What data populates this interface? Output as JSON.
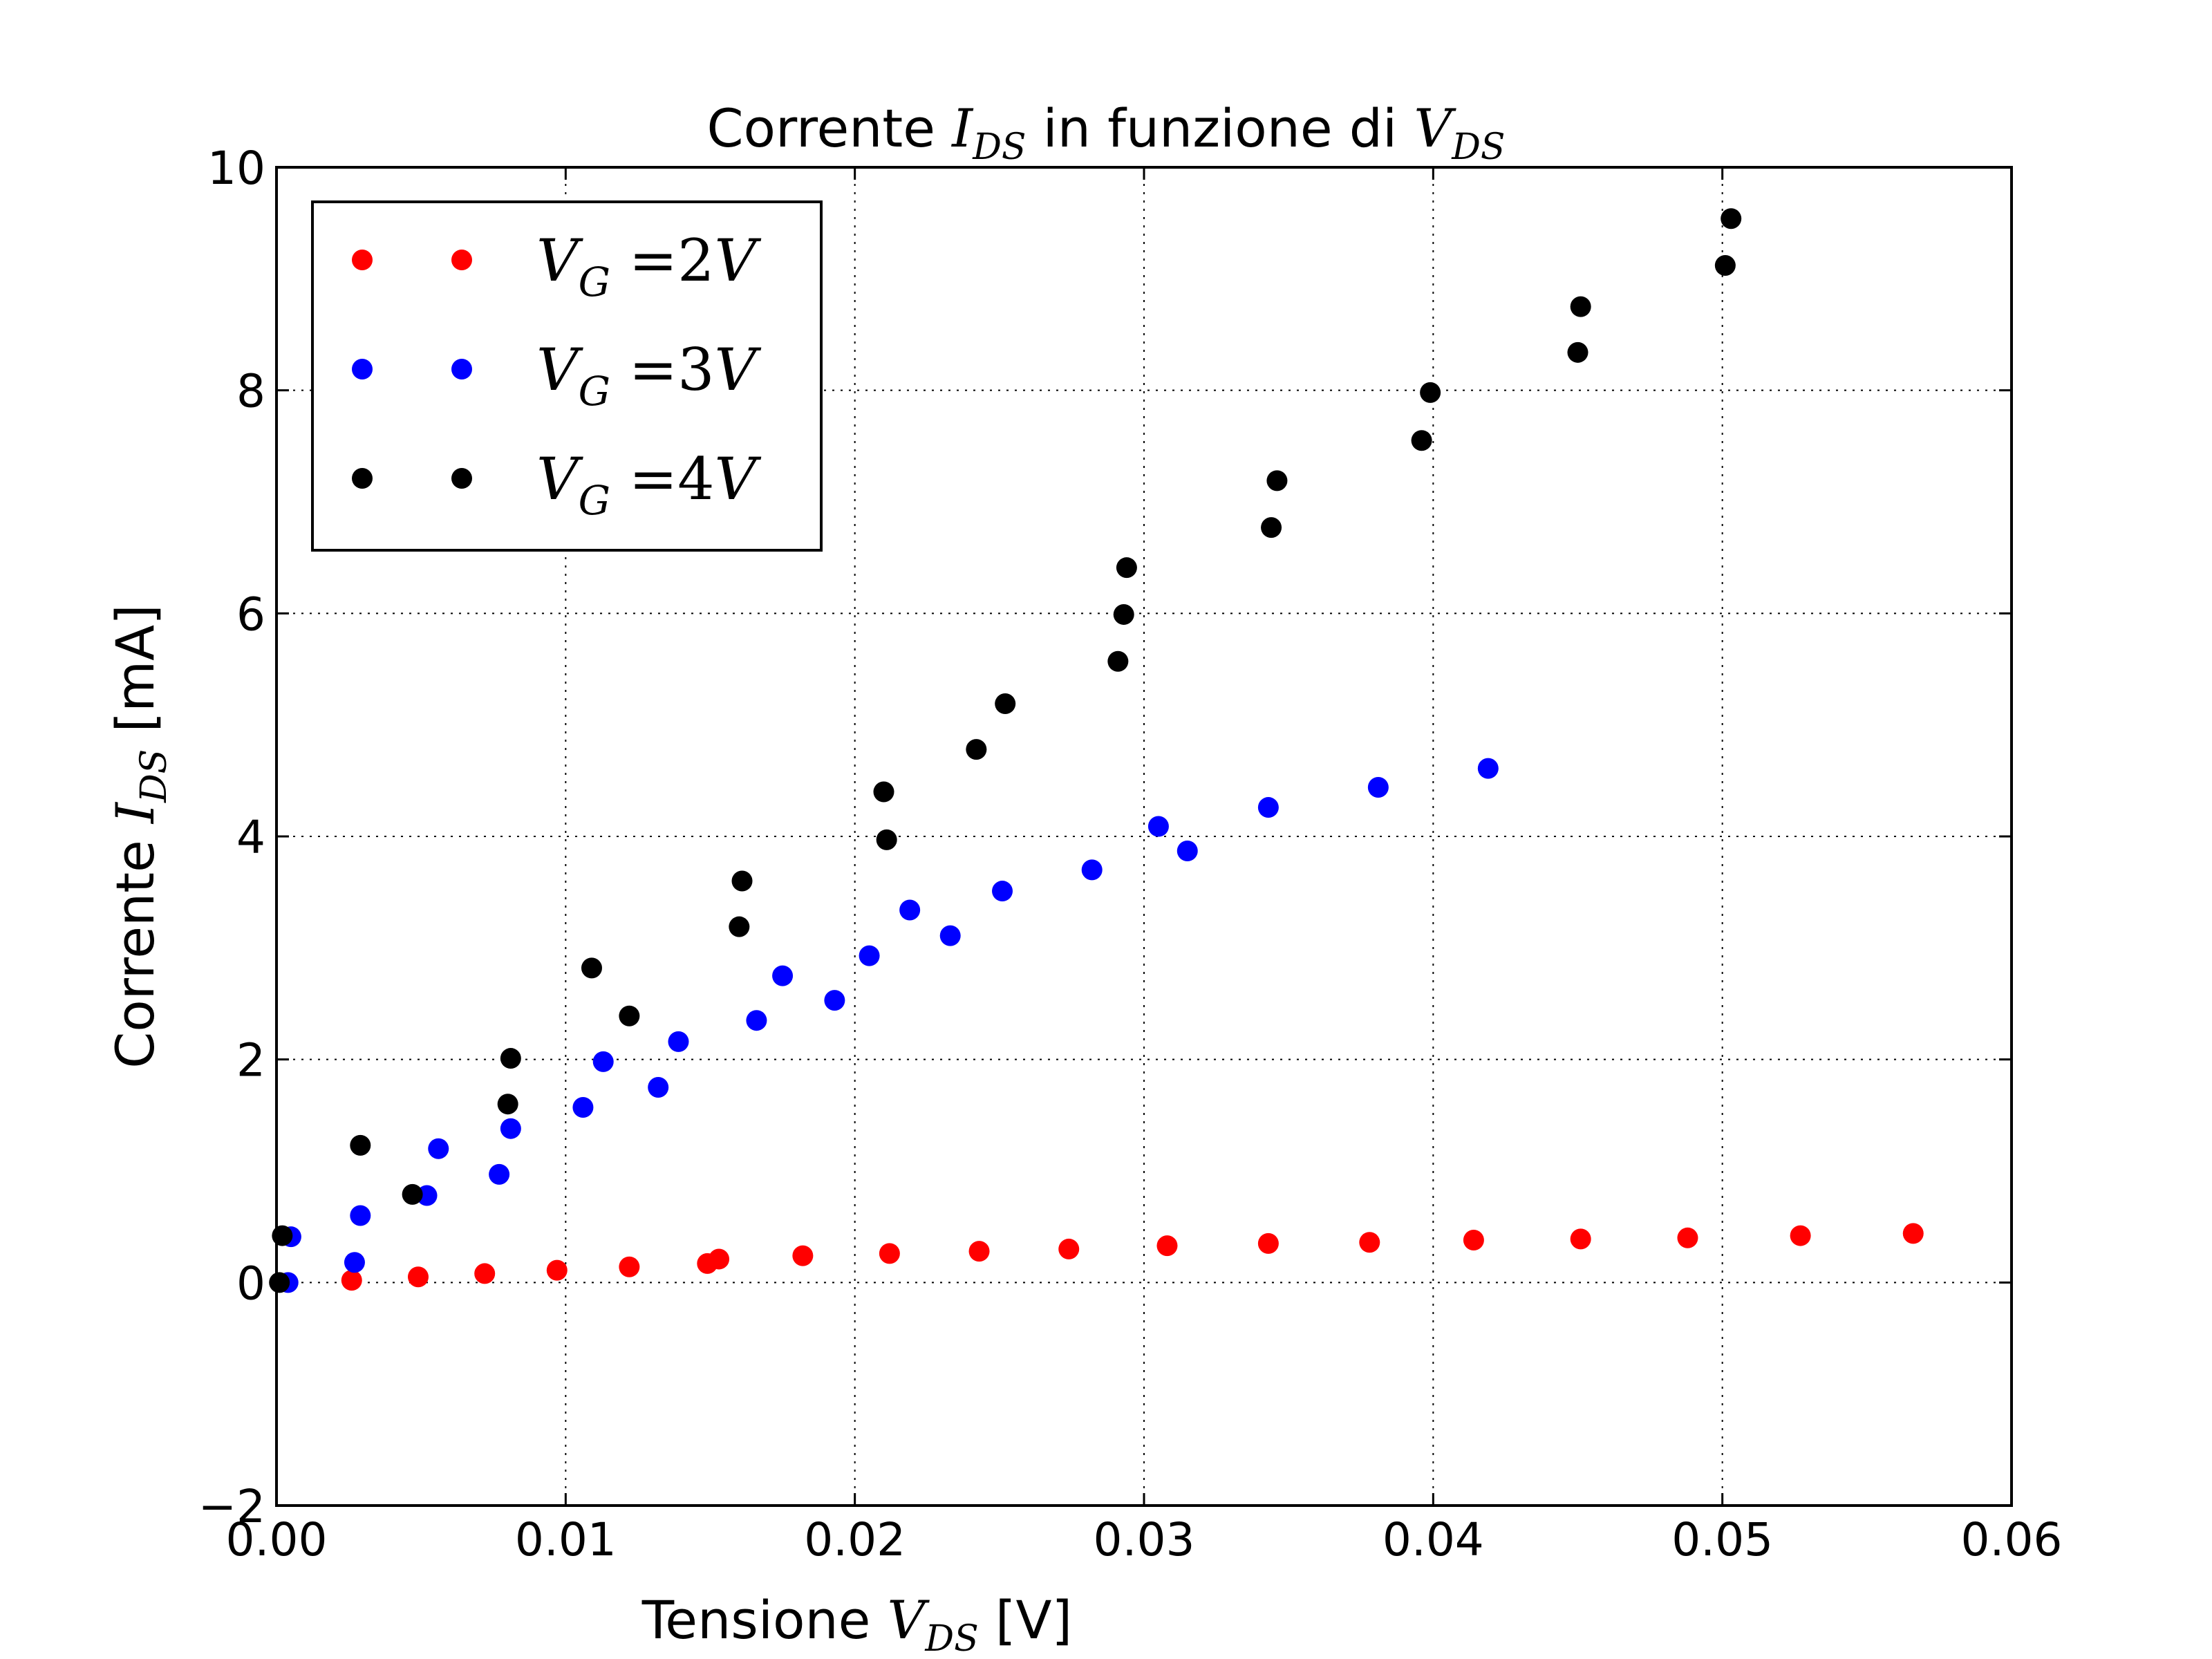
{
  "chart_data": {
    "type": "scatter",
    "title": {
      "prefix": "Corrente ",
      "var": "I",
      "var_sub": "DS",
      "middle": " in funzione di ",
      "var2": "V",
      "var2_sub": "DS"
    },
    "xlabel": {
      "prefix": "Tensione ",
      "var": "V",
      "var_sub": "DS",
      "suffix": " [V]"
    },
    "ylabel": {
      "prefix": "Corrente ",
      "var": "I",
      "var_sub": "DS",
      "suffix": " [mA]"
    },
    "xlim": [
      0,
      0.06
    ],
    "ylim": [
      -2,
      10
    ],
    "xticks": [
      0.0,
      0.01,
      0.02,
      0.03,
      0.04,
      0.05,
      0.06
    ],
    "xtick_labels": [
      "0.00",
      "0.01",
      "0.02",
      "0.03",
      "0.04",
      "0.05",
      "0.06"
    ],
    "yticks": [
      -2,
      0,
      2,
      4,
      6,
      8,
      10
    ],
    "ytick_labels": [
      "−2",
      "0",
      "2",
      "4",
      "6",
      "8",
      "10"
    ],
    "grid": true,
    "legend_position": "top-left",
    "series": [
      {
        "name": "V_G =2V",
        "label_var": "V",
        "label_sub": "G",
        "label_rest": " =2",
        "label_unit": "V",
        "color": "#ff0000",
        "x": [
          0.0026,
          0.0049,
          0.0072,
          0.0097,
          0.0122,
          0.0149,
          0.0153,
          0.0182,
          0.0212,
          0.0243,
          0.0274,
          0.0308,
          0.0343,
          0.0378,
          0.0414,
          0.0451,
          0.0488,
          0.0527,
          0.0566
        ],
        "y": [
          0.02,
          0.05,
          0.08,
          0.11,
          0.14,
          0.17,
          0.21,
          0.24,
          0.26,
          0.28,
          0.3,
          0.33,
          0.35,
          0.36,
          0.38,
          0.39,
          0.4,
          0.42,
          0.44
        ]
      },
      {
        "name": "V_G =3V",
        "label_var": "V",
        "label_sub": "G",
        "label_rest": " =3",
        "label_unit": "V",
        "color": "#0000ff",
        "x": [
          0.0004,
          0.0005,
          0.0027,
          0.0029,
          0.0052,
          0.0056,
          0.0077,
          0.0081,
          0.0106,
          0.0113,
          0.0132,
          0.0139,
          0.0166,
          0.0175,
          0.0193,
          0.0205,
          0.0219,
          0.0233,
          0.0251,
          0.0282,
          0.0305,
          0.0315,
          0.0343,
          0.0381,
          0.0419
        ],
        "y": [
          0.0,
          0.41,
          0.18,
          0.6,
          0.78,
          1.2,
          0.97,
          1.38,
          1.57,
          1.98,
          1.75,
          2.16,
          2.35,
          2.75,
          2.53,
          2.93,
          3.34,
          3.11,
          3.51,
          3.7,
          4.09,
          3.87,
          4.26,
          4.44,
          4.61
        ]
      },
      {
        "name": "V_G =4V",
        "label_var": "V",
        "label_sub": "G",
        "label_rest": " =4",
        "label_unit": "V",
        "color": "#000000",
        "x": [
          0.0001,
          0.0002,
          0.0029,
          0.0047,
          0.008,
          0.0081,
          0.0109,
          0.0122,
          0.016,
          0.0161,
          0.021,
          0.0211,
          0.0242,
          0.0252,
          0.0291,
          0.0293,
          0.0294,
          0.0344,
          0.0346,
          0.0396,
          0.0399,
          0.045,
          0.0451,
          0.0501,
          0.0503
        ],
        "y": [
          0.0,
          0.42,
          1.23,
          0.79,
          1.6,
          2.01,
          2.82,
          2.39,
          3.19,
          3.6,
          4.4,
          3.97,
          4.78,
          5.19,
          5.57,
          5.99,
          6.41,
          6.77,
          7.19,
          7.55,
          7.98,
          8.34,
          8.75,
          9.12,
          9.54
        ]
      }
    ]
  }
}
